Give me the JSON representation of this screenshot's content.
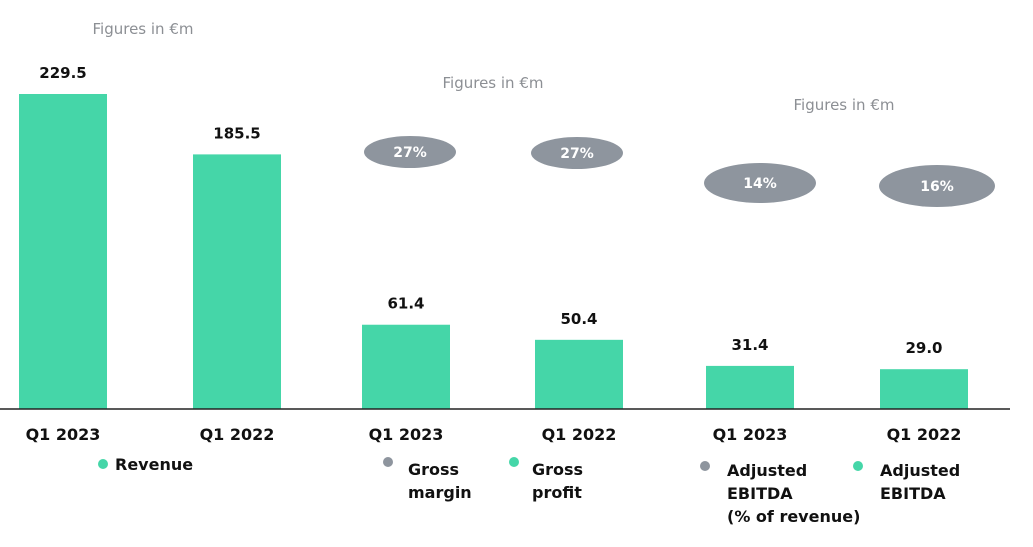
{
  "colors": {
    "bar": "#45d6a8",
    "bubble": "#8e959e",
    "axis": "#222222"
  },
  "chart_data": [
    {
      "type": "bar",
      "note": "Figures in €m",
      "categories": [
        "Q1 2023",
        "Q1 2022"
      ],
      "values": [
        229.5,
        185.5
      ],
      "value_labels": [
        "229.5",
        "185.5"
      ],
      "legend": [
        {
          "label": "Revenue",
          "color": "#45d6a8"
        }
      ]
    },
    {
      "type": "bar",
      "note": "Figures in €m",
      "categories": [
        "Q1 2023",
        "Q1 2022"
      ],
      "values": [
        61.4,
        50.4
      ],
      "value_labels": [
        "61.4",
        "50.4"
      ],
      "margin_labels": [
        "27%",
        "27%"
      ],
      "legend": [
        {
          "label_lines": [
            "Gross",
            "margin"
          ],
          "color": "#8e959e"
        },
        {
          "label_lines": [
            "Gross",
            "profit"
          ],
          "color": "#45d6a8"
        }
      ]
    },
    {
      "type": "bar",
      "note": "Figures in €m",
      "categories": [
        "Q1 2023",
        "Q1 2022"
      ],
      "values": [
        31.4,
        29.0
      ],
      "value_labels": [
        "31.4",
        "29.0"
      ],
      "margin_labels": [
        "14%",
        "16%"
      ],
      "legend": [
        {
          "label_lines": [
            "Adjusted",
            "EBITDA",
            "(% of revenue)"
          ],
          "color": "#8e959e"
        },
        {
          "label_lines": [
            "Adjusted",
            "EBITDA"
          ],
          "color": "#45d6a8"
        }
      ]
    }
  ]
}
